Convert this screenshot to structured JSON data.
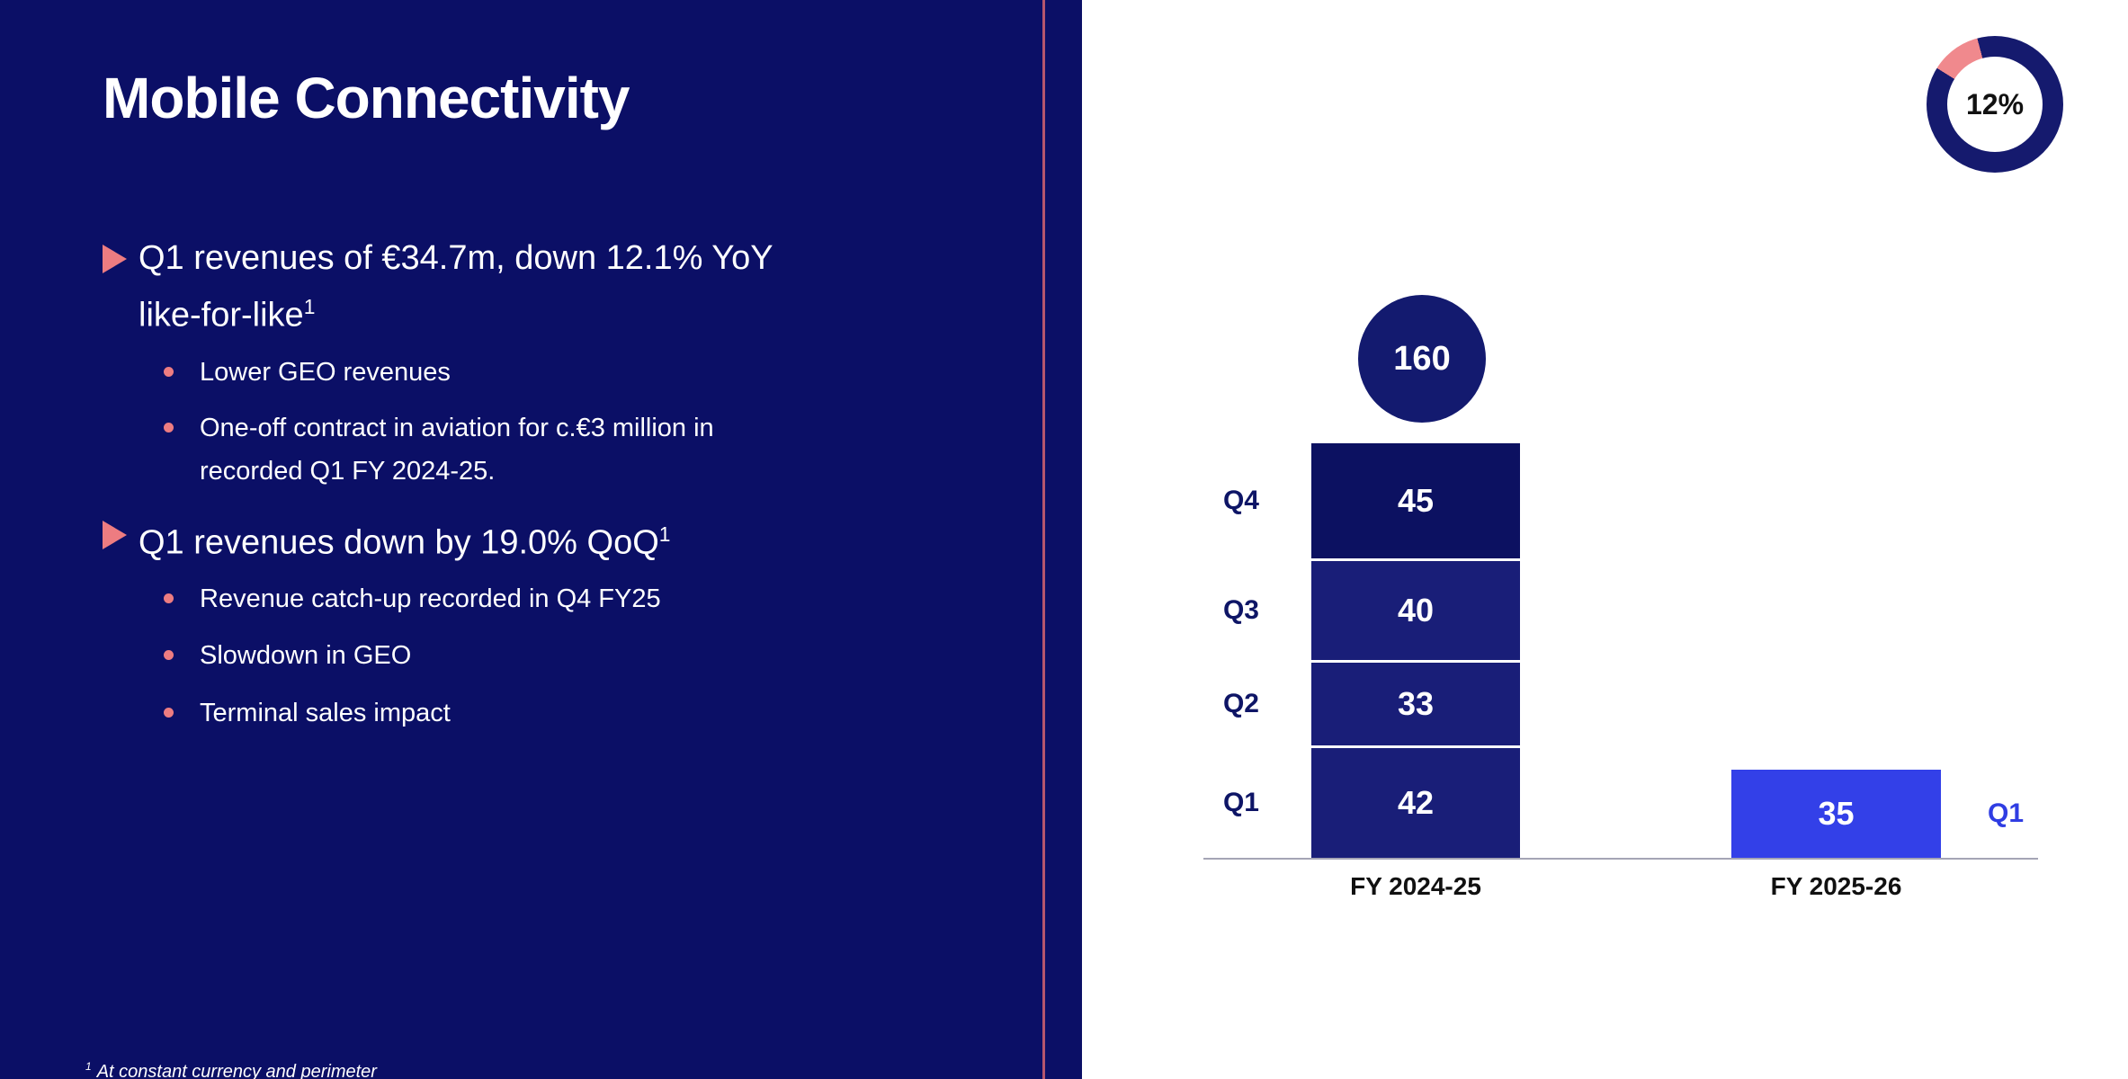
{
  "slide": {
    "title": "Mobile Connectivity",
    "footnote_sup": "1",
    "footnote_text": "At constant currency and perimeter"
  },
  "left": {
    "bullets": {
      "b1_text": "Q1 revenues of €34.7m, down 12.1% YoY\nlike-for-like",
      "b1_sup": "1",
      "s1_text": "Lower GEO revenues",
      "s2_text": "One-off contract in aviation for c.€3 million in\nrecorded Q1 FY 2024-25.",
      "b2_text": "Q1 revenues down by 19.0% QoQ",
      "b2_sup": "1",
      "s3_text": "Revenue catch-up  recorded in Q4 FY25",
      "s4_text": "Slowdown in GEO",
      "s5_text": "Terminal sales impact"
    }
  },
  "colors": {
    "panel_navy": "#0B0F66",
    "divider_rose": "#B5566E",
    "accent_salmon": "#ED7C81",
    "bar_navy_dark": "#0C1161",
    "bar_navy": "#191E78",
    "bar_bright_blue": "#3340E8",
    "donut_navy": "#151A6E",
    "donut_pink": "#F0898D",
    "axis_gray": "#A5A5B5"
  },
  "chart_data": [
    {
      "type": "donut",
      "label": "12%",
      "value_pct": 12,
      "ring_color": "#151A6E",
      "segment_color": "#F0898D",
      "legend_position": "none",
      "note": "small gauge, top-right; pink segment spans ~12% of ring at upper-left"
    },
    {
      "type": "bar",
      "stacked": true,
      "categories": [
        "FY 2024-25",
        "FY 2025-26"
      ],
      "series": [
        {
          "name": "Q4",
          "values": [
            45,
            null
          ]
        },
        {
          "name": "Q3",
          "values": [
            40,
            null
          ]
        },
        {
          "name": "Q2",
          "values": [
            33,
            null
          ]
        },
        {
          "name": "Q1",
          "values": [
            42,
            35
          ]
        }
      ],
      "total_badge": {
        "category": "FY 2024-25",
        "value": "160"
      },
      "ylim": [
        0,
        160
      ],
      "grid": false,
      "value_labels": "inside-white-bold",
      "quarter_axis_labels": [
        "Q4",
        "Q3",
        "Q2",
        "Q1"
      ],
      "fy2526_bar_color": "#3340E8",
      "fy2425_bar_colors": [
        "#0C1161",
        "#191E78",
        "#191E78",
        "#191E78"
      ]
    }
  ]
}
